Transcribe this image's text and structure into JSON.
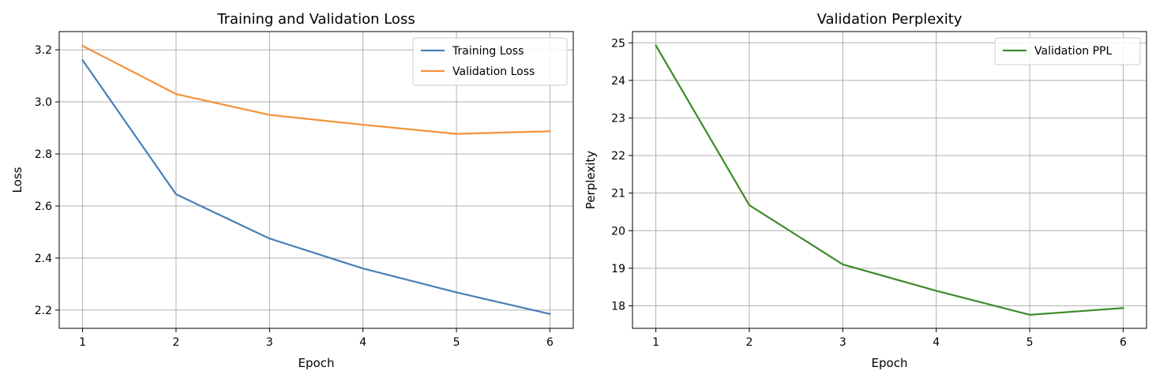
{
  "chart_data": [
    {
      "type": "line",
      "title": "Training and Validation Loss",
      "xlabel": "Epoch",
      "ylabel": "Loss",
      "x": [
        1,
        2,
        3,
        4,
        5,
        6
      ],
      "xticks": [
        "1",
        "2",
        "3",
        "4",
        "5",
        "6"
      ],
      "yticks": [
        "2.2",
        "2.4",
        "2.6",
        "2.8",
        "3.0",
        "3.2"
      ],
      "xlim": [
        0.75,
        6.25
      ],
      "ylim": [
        2.13,
        3.27
      ],
      "grid": true,
      "legend_position": "top-right",
      "series": [
        {
          "name": "Training Loss",
          "color": "#4a7fb5",
          "values": [
            3.16,
            2.645,
            2.475,
            2.36,
            2.268,
            2.185
          ]
        },
        {
          "name": "Validation Loss",
          "color": "#f39237",
          "values": [
            3.215,
            3.03,
            2.95,
            2.912,
            2.877,
            2.887
          ]
        }
      ]
    },
    {
      "type": "line",
      "title": "Validation Perplexity",
      "xlabel": "Epoch",
      "ylabel": "Perplexity",
      "x": [
        1,
        2,
        3,
        4,
        5,
        6
      ],
      "xticks": [
        "1",
        "2",
        "3",
        "4",
        "5",
        "6"
      ],
      "yticks": [
        "18",
        "19",
        "20",
        "21",
        "22",
        "23",
        "24",
        "25"
      ],
      "xlim": [
        0.75,
        6.25
      ],
      "ylim": [
        17.4,
        25.3
      ],
      "grid": true,
      "legend_position": "top-right",
      "series": [
        {
          "name": "Validation PPL",
          "color": "#3d8a2a",
          "values": [
            24.93,
            20.68,
            19.1,
            18.4,
            17.76,
            17.94
          ]
        }
      ]
    }
  ]
}
